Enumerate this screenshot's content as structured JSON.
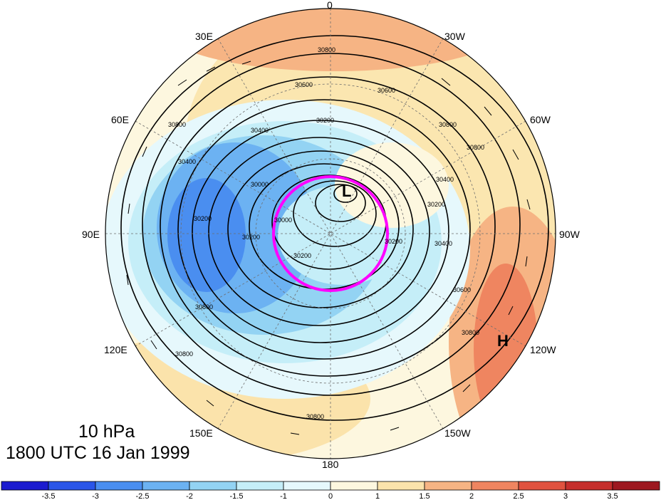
{
  "caption": {
    "level": "10 hPa",
    "time": "1800 UTC 16 Jan 1999"
  },
  "longitude_labels": {
    "lon_0": "0",
    "lon_30e": "30E",
    "lon_30w": "30W",
    "lon_60e": "60E",
    "lon_60w": "60W",
    "lon_90e": "90E",
    "lon_90w": "90W",
    "lon_120e": "120E",
    "lon_120w": "120W",
    "lon_150e": "150E",
    "lon_150w": "150W",
    "lon_180": "180"
  },
  "markers": {
    "low": "L",
    "high": "H"
  },
  "contour_labels": [
    "30800",
    "30600",
    "30600",
    "30400",
    "30800",
    "30800",
    "30200",
    "30000",
    "30200",
    "30400",
    "30200",
    "30200",
    "30400",
    "30600",
    "30800",
    "30800",
    "30200",
    "30000",
    "30200",
    "30400",
    "30800",
    "30800",
    "30800"
  ],
  "colorbar": {
    "ticks": [
      "-3.5",
      "-3",
      "-2.5",
      "-2",
      "-1.5",
      "-1",
      "0",
      "1",
      "1.5",
      "2",
      "2.5",
      "3",
      "3.5"
    ],
    "colors": [
      "#1c1ccf",
      "#2a55e8",
      "#4a8ef0",
      "#6cb2f2",
      "#93d3f3",
      "#c5eef8",
      "#e6f8fc",
      "#fdf7df",
      "#fbe3ab",
      "#f6b484",
      "#ef8560",
      "#e0523f",
      "#c52e2c",
      "#9d1820"
    ]
  },
  "colors": {
    "circle": "#ff00ff",
    "contour": "#000000",
    "grid": "#6e6e6e"
  }
}
